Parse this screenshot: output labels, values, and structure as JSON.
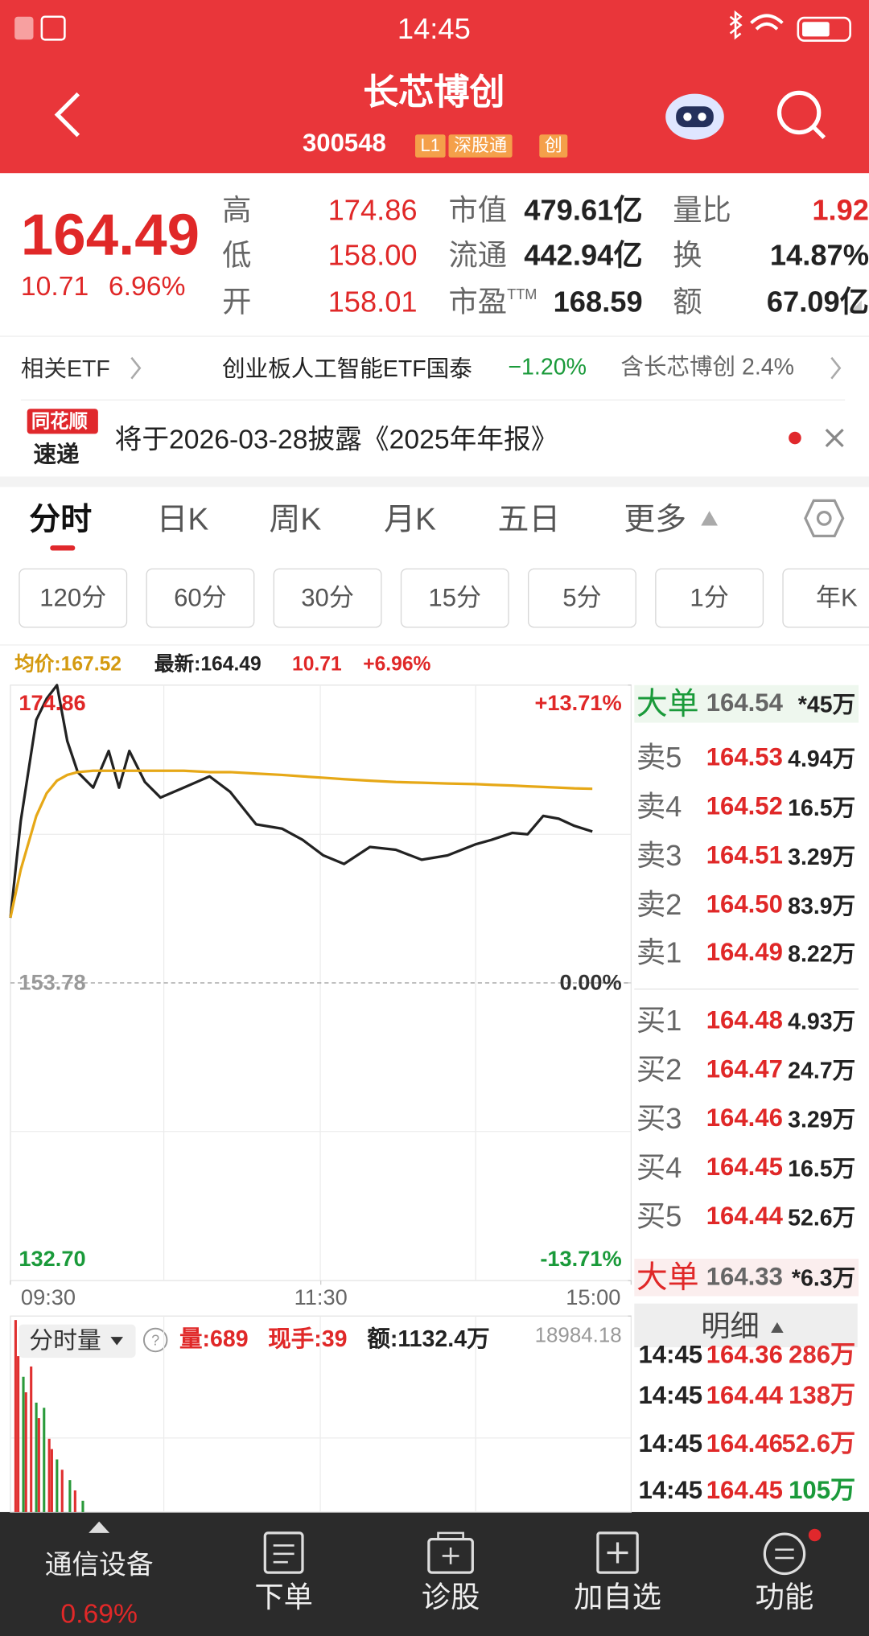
{
  "status_bar": {
    "time": "14:45"
  },
  "header": {
    "title": "长芯博创",
    "code": "300548",
    "badges": [
      "L1",
      "深股通",
      "创"
    ]
  },
  "quote": {
    "price": "164.49",
    "change": "10.71",
    "change_pct": "6.96%",
    "stats": [
      [
        {
          "label": "高",
          "value": "174.86"
        },
        {
          "label": "低",
          "value": "158.00"
        },
        {
          "label": "开",
          "value": "158.01"
        }
      ],
      [
        {
          "label": "市值",
          "value": "479.61亿"
        },
        {
          "label": "流通",
          "value": "442.94亿"
        },
        {
          "label": "市盈",
          "suffix": "TTM",
          "value": "168.59"
        }
      ],
      [
        {
          "label": "量比",
          "value": "1.92"
        },
        {
          "label": "换",
          "value": "14.87%"
        },
        {
          "label": "额",
          "value": "67.09亿"
        }
      ]
    ]
  },
  "etf": {
    "label": "相关ETF",
    "name": "创业板人工智能ETF国泰",
    "change": "−1.20%",
    "holding": "含长芯博创 2.4%"
  },
  "notice": {
    "logo_top": "同花顺",
    "logo_bottom": "速递",
    "text": "将于2026-03-28披露《2025年年报》"
  },
  "tabs": [
    "分时",
    "日K",
    "周K",
    "月K",
    "五日",
    "更多"
  ],
  "periods": [
    "120分",
    "60分",
    "30分",
    "15分",
    "5分",
    "1分",
    "年K"
  ],
  "chart_info": {
    "avg": "均价:167.52",
    "latest": "最新:164.49",
    "change": "10.71",
    "pct": "+6.96%"
  },
  "chart_data": [
    {
      "type": "line",
      "x": [
        0,
        4,
        10,
        14,
        18,
        22,
        26,
        32,
        38,
        42,
        46,
        52,
        58,
        67,
        77,
        85,
        95,
        105,
        113,
        121,
        129,
        139,
        149,
        159,
        169,
        180,
        186,
        194,
        200,
        206,
        212,
        218,
        225
      ],
      "xlim": [
        0,
        240
      ],
      "xticks": [
        {
          "value": 0,
          "label": "09:30"
        },
        {
          "value": 120,
          "label": "11:30"
        },
        {
          "value": 240,
          "label": "15:00"
        }
      ],
      "ylim": [
        132.7,
        174.86
      ],
      "yticks": [
        174.86,
        153.78,
        {
          "value": 132.7,
          "label": "132.70"
        }
      ],
      "y2lim": [
        -13.71,
        13.71
      ],
      "y2ticks": [
        {
          "value": 13.71,
          "label": "+13.71%"
        },
        {
          "value": 0,
          "label": "0.00%"
        },
        {
          "value": -13.71,
          "label": "-13.71%"
        }
      ],
      "series": [
        {
          "color": "#222222",
          "values": [
            158.39,
            165.25,
            172.4,
            173.9,
            174.86,
            170.9,
            168.7,
            167.6,
            170.2,
            167.6,
            170.2,
            168.0,
            166.9,
            167.6,
            168.4,
            167.3,
            165.0,
            164.7,
            163.9,
            162.8,
            162.2,
            163.4,
            163.2,
            162.5,
            162.8,
            163.6,
            163.9,
            164.4,
            164.3,
            165.6,
            165.4,
            164.9,
            164.49
          ]
        },
        {
          "color": "#e6a817",
          "values": [
            158.4,
            161.8,
            165.6,
            167.2,
            168.1,
            168.5,
            168.7,
            168.8,
            168.8,
            168.8,
            168.8,
            168.8,
            168.8,
            168.8,
            168.7,
            168.7,
            168.6,
            168.5,
            168.4,
            168.3,
            168.2,
            168.1,
            168.0,
            167.95,
            167.9,
            167.85,
            167.8,
            167.75,
            167.7,
            167.65,
            167.6,
            167.55,
            167.52
          ]
        }
      ]
    },
    {
      "type": "bar",
      "label": "分时量",
      "volume": "量:689",
      "hand": "现手:39",
      "amount": "额:1132.4万",
      "x": [
        2,
        3,
        5,
        6,
        8,
        10,
        11,
        13,
        15,
        16,
        18,
        20,
        23,
        25,
        28
      ],
      "xlim": [
        0,
        240
      ],
      "ylim": [
        0,
        18984.18
      ],
      "yticks": [
        18984.18
      ],
      "values": [
        18600,
        15100,
        13100,
        11600,
        14100,
        10600,
        9100,
        10100,
        7100,
        6100,
        5100,
        4100,
        3100,
        2100,
        1100
      ],
      "colors": [
        "#e03030",
        "#e03030",
        "#2a9a3a",
        "#e03030",
        "#e03030",
        "#2a9a3a",
        "#e03030",
        "#2a9a3a",
        "#e03030",
        "#e03030",
        "#2a9a3a",
        "#e03030",
        "#2a9a3a",
        "#e03030",
        "#2a9a3a"
      ]
    }
  ],
  "order_book": {
    "big_top": {
      "label": "大单",
      "price": "164.54",
      "vol": "*45万"
    },
    "asks": [
      {
        "label": "卖5",
        "price": "164.53",
        "vol": "4.94万"
      },
      {
        "label": "卖4",
        "price": "164.52",
        "vol": "16.5万"
      },
      {
        "label": "卖3",
        "price": "164.51",
        "vol": "3.29万"
      },
      {
        "label": "卖2",
        "price": "164.50",
        "vol": "83.9万"
      },
      {
        "label": "卖1",
        "price": "164.49",
        "vol": "8.22万"
      }
    ],
    "bids": [
      {
        "label": "买1",
        "price": "164.48",
        "vol": "4.93万"
      },
      {
        "label": "买2",
        "price": "164.47",
        "vol": "24.7万"
      },
      {
        "label": "买3",
        "price": "164.46",
        "vol": "3.29万"
      },
      {
        "label": "买4",
        "price": "164.45",
        "vol": "16.5万"
      },
      {
        "label": "买5",
        "price": "164.44",
        "vol": "52.6万"
      }
    ],
    "big_bottom": {
      "label": "大单",
      "price": "164.33",
      "vol": "*6.3万"
    },
    "detail_button": "明细",
    "trades": [
      {
        "time": "14:45",
        "price": "164.36",
        "vol": "286万",
        "color": "#e03030"
      },
      {
        "time": "14:45",
        "price": "164.44",
        "vol": "138万",
        "color": "#e03030"
      },
      {
        "time": "14:45",
        "price": "164.46",
        "vol": "52.6万",
        "color": "#e03030"
      },
      {
        "time": "14:45",
        "price": "164.45",
        "vol": "105万",
        "color": "#1a9a3a"
      }
    ]
  },
  "bottom_nav": {
    "sector": {
      "name": "通信设备",
      "pct": "0.69%"
    },
    "items": [
      "下单",
      "诊股",
      "加自选",
      "功能"
    ]
  }
}
